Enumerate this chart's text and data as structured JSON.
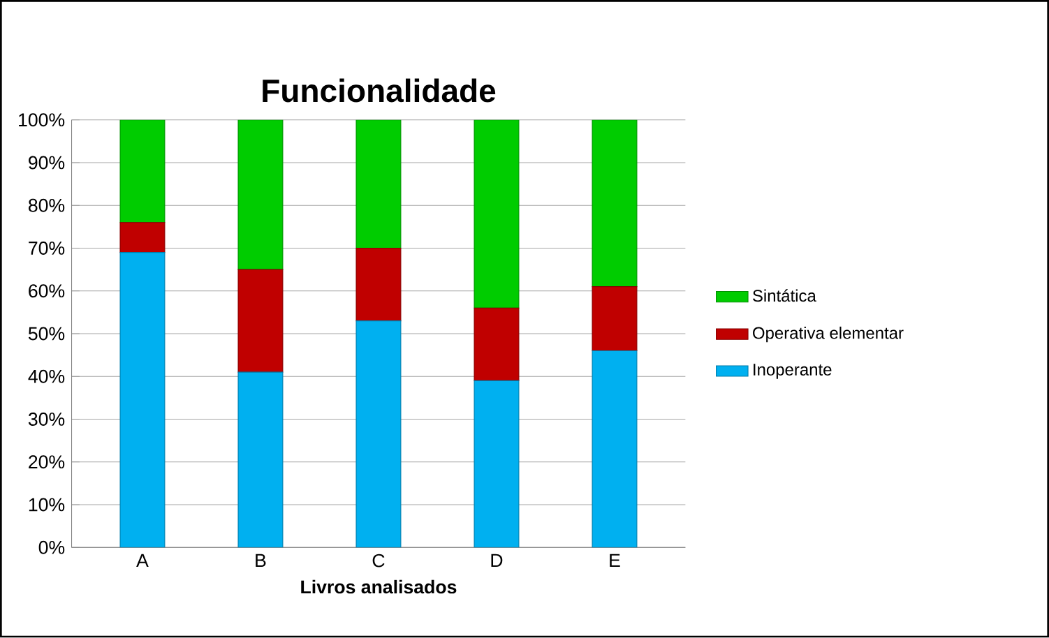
{
  "chart_data": {
    "type": "bar",
    "title": "Funcionalidade",
    "xlabel": "Livros analisados",
    "categories": [
      "A",
      "B",
      "C",
      "D",
      "E"
    ],
    "stacked": true,
    "ylim": [
      0,
      100
    ],
    "yticks": [
      {
        "value": 0,
        "label": "0%"
      },
      {
        "value": 10,
        "label": "10%"
      },
      {
        "value": 20,
        "label": "20%"
      },
      {
        "value": 30,
        "label": "30%"
      },
      {
        "value": 40,
        "label": "40%"
      },
      {
        "value": 50,
        "label": "50%"
      },
      {
        "value": 60,
        "label": "60%"
      },
      {
        "value": 70,
        "label": "70%"
      },
      {
        "value": 80,
        "label": "80%"
      },
      {
        "value": 90,
        "label": "90%"
      },
      {
        "value": 100,
        "label": "100%"
      }
    ],
    "grid": "y",
    "legend": "right",
    "series": [
      {
        "name": "Inoperante",
        "color": "#00b0f0",
        "values": [
          69,
          41,
          53,
          39,
          46
        ]
      },
      {
        "name": "Operativa elementar",
        "color": "#c00000",
        "values": [
          7,
          24,
          17,
          17,
          15
        ]
      },
      {
        "name": "Sintática",
        "color": "#00cc00",
        "values": [
          24,
          35,
          30,
          44,
          39
        ]
      }
    ]
  }
}
